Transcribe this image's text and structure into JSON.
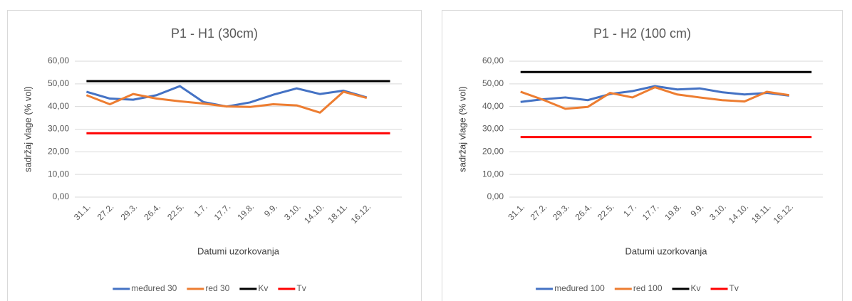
{
  "chart_data": [
    {
      "type": "line",
      "title": "P1 - H1 (30cm)",
      "y_label": "sadržaj vlage (% vol)",
      "x_label": "Datumi uzorkovanja",
      "categories": [
        "31.1.",
        "27.2.",
        "29.3.",
        "26.4.",
        "22.5.",
        "1.7.",
        "17.7.",
        "19.8.",
        "9.9.",
        "3.10.",
        "14.10.",
        "18.11.",
        "16.12.",
        null
      ],
      "ylim": [
        0,
        60
      ],
      "yticks": [
        {
          "value": 0,
          "label": "0,00"
        },
        {
          "value": 10,
          "label": "10,00"
        },
        {
          "value": 20,
          "label": "20,00"
        },
        {
          "value": 30,
          "label": "30,00"
        },
        {
          "value": 40,
          "label": "40,00"
        },
        {
          "value": 50,
          "label": "50,00"
        },
        {
          "value": 60,
          "label": "60,00"
        }
      ],
      "grid": true,
      "legend": "bottom",
      "series": [
        {
          "name": "međured 30",
          "color": "#4472c4",
          "values": [
            46.5,
            43.5,
            43,
            45,
            49,
            42,
            40,
            41.8,
            45.2,
            48,
            45.5,
            47,
            44,
            null
          ]
        },
        {
          "name": "red 30",
          "color": "#ed7d31",
          "values": [
            45,
            41,
            45.5,
            43.5,
            42.3,
            41.3,
            40,
            39.8,
            41,
            40.5,
            37.3,
            46.5,
            43.8,
            null
          ]
        },
        {
          "name": "Kv",
          "color": "#000000",
          "values": [
            51.2,
            51.2,
            51.2,
            51.2,
            51.2,
            51.2,
            51.2,
            51.2,
            51.2,
            51.2,
            51.2,
            51.2,
            51.2,
            51.2
          ]
        },
        {
          "name": "Tv",
          "color": "#ff0000",
          "values": [
            28.2,
            28.2,
            28.2,
            28.2,
            28.2,
            28.2,
            28.2,
            28.2,
            28.2,
            28.2,
            28.2,
            28.2,
            28.2,
            28.2
          ]
        }
      ]
    },
    {
      "type": "line",
      "title": "P1 - H2 (100 cm)",
      "y_label": "sadržaj vlage (% vol)",
      "x_label": "Datumi uzorkovanja",
      "categories": [
        "31.1.",
        "27.2.",
        "29.3.",
        "26.4.",
        "22.5.",
        "1.7.",
        "17.7.",
        "19.8.",
        "9.9.",
        "3.10.",
        "14.10.",
        "18.11.",
        "16.12.",
        null
      ],
      "ylim": [
        0,
        60
      ],
      "yticks": [
        {
          "value": 0,
          "label": "0,00"
        },
        {
          "value": 10,
          "label": "10,00"
        },
        {
          "value": 20,
          "label": "20,00"
        },
        {
          "value": 30,
          "label": "30,00"
        },
        {
          "value": 40,
          "label": "40,00"
        },
        {
          "value": 50,
          "label": "50,00"
        },
        {
          "value": 60,
          "label": "60,00"
        }
      ],
      "grid": true,
      "legend": "bottom",
      "series": [
        {
          "name": "međured 100",
          "color": "#4472c4",
          "values": [
            42,
            43.2,
            44,
            42.8,
            45.5,
            46.8,
            49,
            47.5,
            48,
            46.3,
            45.3,
            46,
            44.8,
            null
          ]
        },
        {
          "name": "red 100",
          "color": "#ed7d31",
          "values": [
            46.5,
            43,
            39,
            39.8,
            46,
            44,
            48.5,
            45.3,
            44,
            42.8,
            42.2,
            46.5,
            45,
            null
          ]
        },
        {
          "name": "Kv",
          "color": "#000000",
          "values": [
            55.2,
            55.2,
            55.2,
            55.2,
            55.2,
            55.2,
            55.2,
            55.2,
            55.2,
            55.2,
            55.2,
            55.2,
            55.2,
            55.2
          ]
        },
        {
          "name": "Tv",
          "color": "#ff0000",
          "values": [
            26.5,
            26.5,
            26.5,
            26.5,
            26.5,
            26.5,
            26.5,
            26.5,
            26.5,
            26.5,
            26.5,
            26.5,
            26.5,
            26.5
          ]
        }
      ]
    }
  ]
}
